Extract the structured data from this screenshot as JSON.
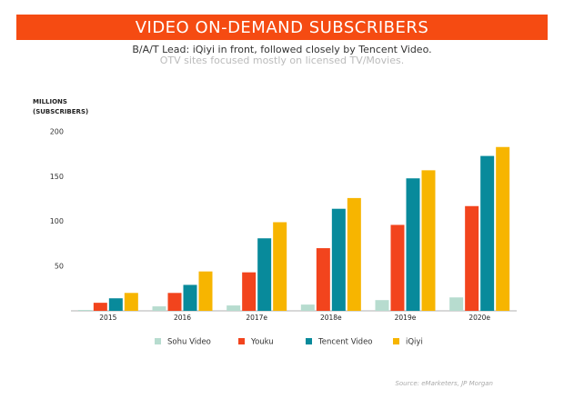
{
  "chart_data": {
    "type": "bar",
    "title": "VIDEO ON-DEMAND SUBSCRIBERS",
    "subtitle": [
      "B/A/T Lead: iQiyi in front, followed closely by Tencent Video.",
      "OTV sites focused mostly on licensed TV/Movies."
    ],
    "y_label": [
      "MILLIONS",
      "(SUBSCRIBERS)"
    ],
    "source": "Source: eMarketers, JP Morgan",
    "categories": [
      "2015",
      "2016",
      "2017e",
      "2018e",
      "2019e",
      "2020e"
    ],
    "series": [
      {
        "name": "Sohu Video",
        "color": "#b7dccf",
        "values": [
          1,
          5,
          6,
          7,
          12,
          15
        ]
      },
      {
        "name": "Youku",
        "color": "#f2441d",
        "values": [
          9,
          20,
          43,
          70,
          96,
          117
        ]
      },
      {
        "name": "Tencent Video",
        "color": "#088a9b",
        "values": [
          14,
          29,
          81,
          114,
          148,
          173
        ]
      },
      {
        "name": "iQiyi",
        "color": "#f7b500",
        "values": [
          20,
          44,
          99,
          126,
          157,
          183
        ]
      }
    ],
    "ylim": [
      0,
      200
    ],
    "yticks": [
      50,
      100,
      150,
      200
    ],
    "grid": false,
    "legend": "bottom"
  }
}
